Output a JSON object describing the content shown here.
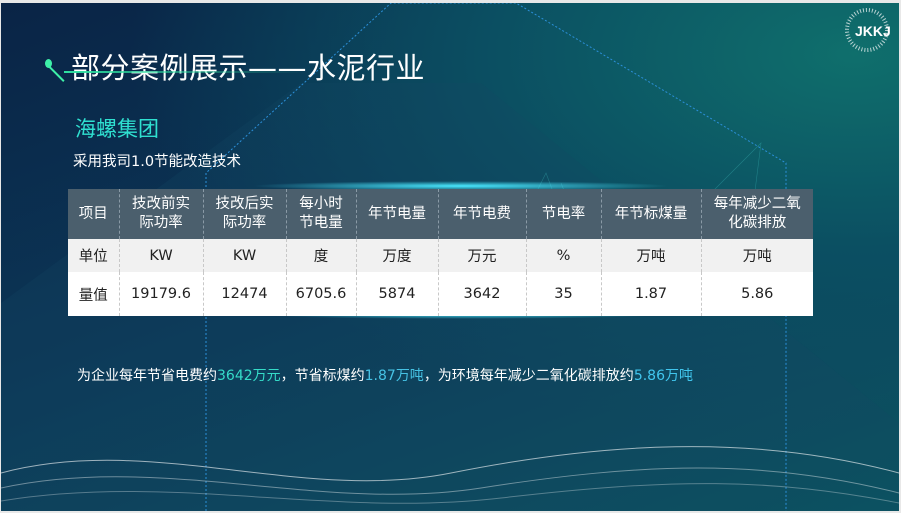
{
  "header": {
    "title": "部分案例展示——水泥行业",
    "logo_text": "JKKJ"
  },
  "company": "海螺集团",
  "subtitle": "采用我司1.0节能改造技术",
  "table": {
    "headers": [
      "项目",
      "技改前实际功率",
      "技改后实际功率",
      "每小时节电量",
      "年节电量",
      "年节电费",
      "节电率",
      "年节标煤量",
      "每年减少二氧化碳排放"
    ],
    "header_lines": [
      [
        "项目"
      ],
      [
        "技改前实",
        "际功率"
      ],
      [
        "技改后实",
        "际功率"
      ],
      [
        "每小时",
        "节电量"
      ],
      [
        "年节电量"
      ],
      [
        "年节电费"
      ],
      [
        "节电率"
      ],
      [
        "年节标煤量"
      ],
      [
        "每年减少二氧",
        "化碳排放"
      ]
    ],
    "rows": [
      [
        "单位",
        "KW",
        "KW",
        "度",
        "万度",
        "万元",
        "%",
        "万吨",
        "万吨"
      ],
      [
        "量值",
        "19179.6",
        "12474",
        "6705.6",
        "5874",
        "3642",
        "35",
        "1.87",
        "5.86"
      ]
    ]
  },
  "summary": {
    "p1": "为企业每年节省电费约",
    "v1": "3642万元",
    "p2": "，节省标煤约",
    "v2": "1.87万吨",
    "p3": "，为环境每年减少二氧化碳排放约",
    "v3": "5.86万吨"
  },
  "colors": {
    "accent_teal": "#35dcc8",
    "accent_blue": "#46c2e4",
    "header_bg": "#4b5f6d",
    "title_accent": "#3ef0a8"
  }
}
